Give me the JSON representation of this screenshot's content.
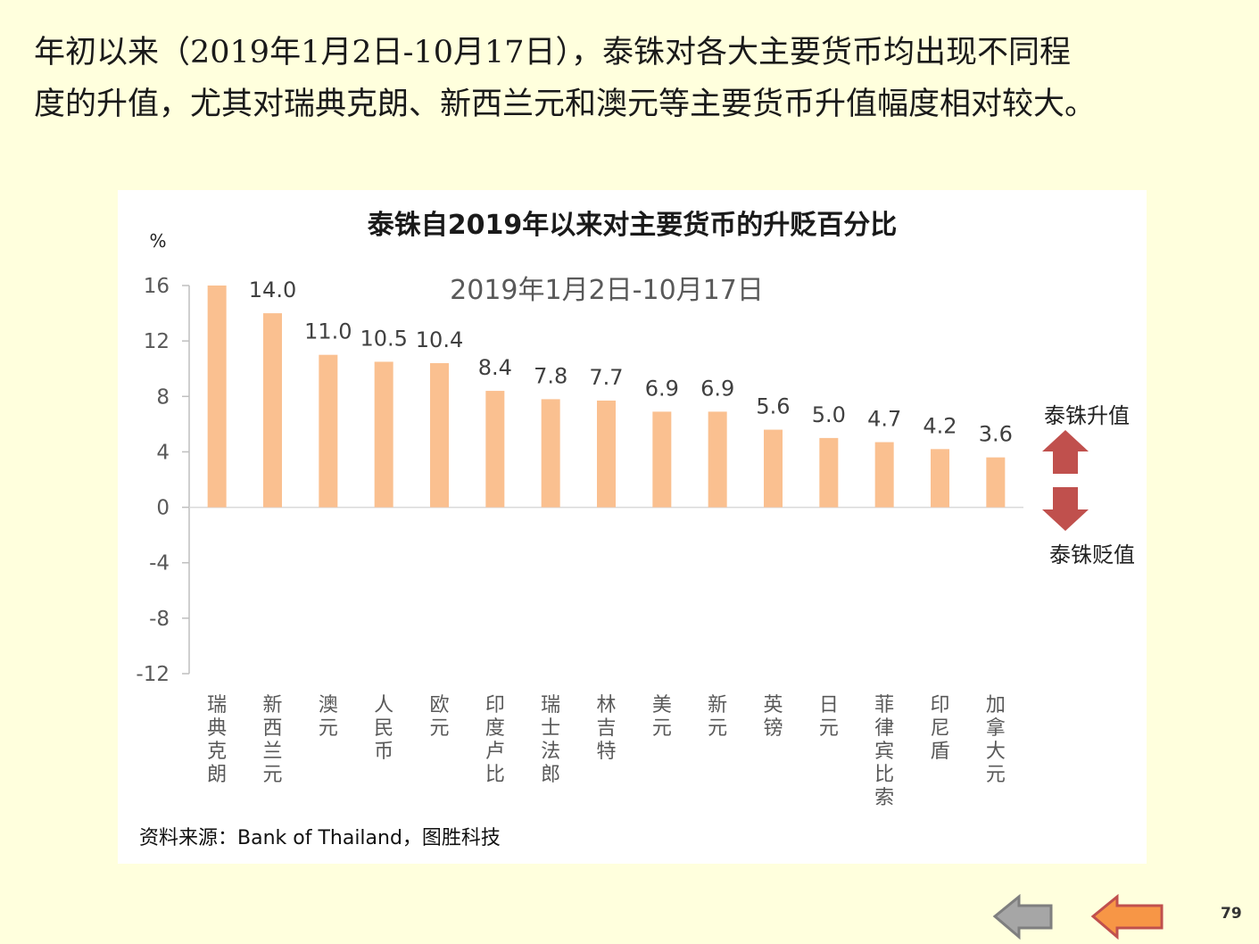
{
  "intro": {
    "line1": "年初以来（2019年1月2日-10月17日），泰铢对各大主要货币均出现不同程",
    "line2": "度的升值，尤其对瑞典克朗、新西兰元和澳元等主要货币升值幅度相对较大。"
  },
  "chart_data": {
    "type": "bar",
    "title": "泰铢自2019年以来对主要货币的升贬百分比",
    "subtitle": "2019年1月2日-10月17日",
    "ylabel": "%",
    "ylim": [
      -12,
      16
    ],
    "yticks": [
      16,
      12,
      8,
      4,
      0,
      -4,
      -8,
      -12
    ],
    "categories": [
      "瑞典克朗",
      "新西兰元",
      "澳元",
      "人民币",
      "欧元",
      "印度卢比",
      "瑞士法郎",
      "林吉特",
      "美元",
      "新元",
      "英镑",
      "日元",
      "菲律宾比索",
      "印尼盾",
      "加拿大元"
    ],
    "values": [
      16.0,
      14.0,
      11.0,
      10.5,
      10.4,
      8.4,
      7.8,
      7.7,
      6.9,
      6.9,
      5.6,
      5.0,
      4.7,
      4.2,
      3.6
    ],
    "data_labels": [
      "",
      "14.0",
      "11.0",
      "10.5",
      "10.4",
      "8.4",
      "7.8",
      "7.7",
      "6.9",
      "6.9",
      "5.6",
      "5.0",
      "4.7",
      "4.2",
      "3.6"
    ],
    "bar_color": "#FAC090",
    "grid": false,
    "legend": [
      {
        "label": "泰铢升值",
        "direction": "up",
        "color": "#C0504D"
      },
      {
        "label": "泰铢贬值",
        "direction": "down",
        "color": "#C0504D"
      }
    ]
  },
  "source": "资料来源：Bank of Thailand，图胜科技",
  "nav": {
    "prev_color": "#A6A6A6",
    "next_color": "#F79646"
  },
  "page_number": "79"
}
